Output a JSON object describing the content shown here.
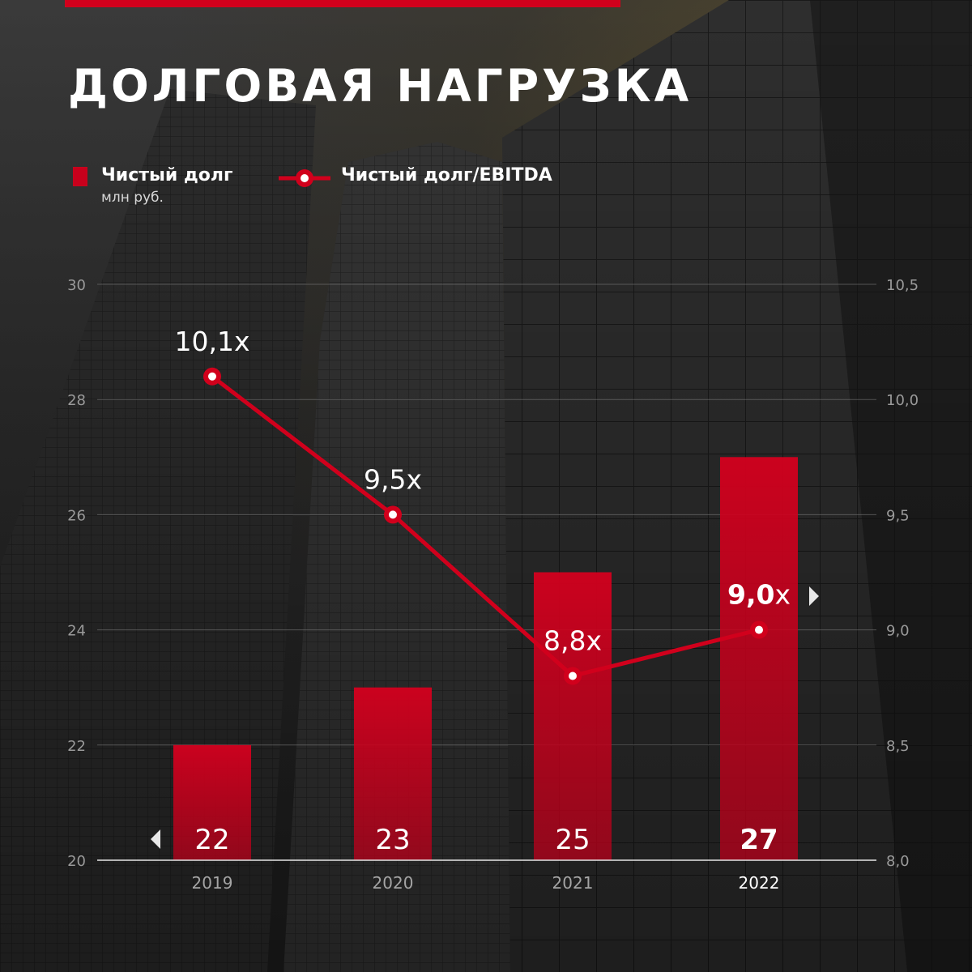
{
  "title": "ДОЛГОВАЯ НАГРУЗКА",
  "legend": {
    "bar_label": "Чистый долг",
    "bar_sublabel": "млн руб.",
    "line_label": "Чистый долг/EBITDA"
  },
  "colors": {
    "accent": "#c8001c",
    "text": "#ffffff",
    "gridline": "#6a6a6a"
  },
  "chart_data": {
    "type": "bar",
    "categories": [
      "2019",
      "2020",
      "2021",
      "2022"
    ],
    "series": [
      {
        "name": "Чистый долг",
        "type": "bar",
        "axis": "left",
        "values": [
          22,
          23,
          25,
          27
        ],
        "labels": [
          "22",
          "23",
          "25",
          "27"
        ]
      },
      {
        "name": "Чистый долг/EBITDA",
        "type": "line",
        "axis": "right",
        "values": [
          10.1,
          9.5,
          8.8,
          9.0
        ],
        "labels": [
          "10,1x",
          "9,5x",
          "8,8x",
          "9,0x"
        ]
      }
    ],
    "y_left": {
      "ylim": [
        20,
        30
      ],
      "ticks": [
        "20",
        "22",
        "24",
        "26",
        "28",
        "30"
      ]
    },
    "y_right": {
      "ylim": [
        8.0,
        10.5
      ],
      "ticks": [
        "8,0",
        "8,5",
        "9,0",
        "9,5",
        "10,0",
        "10,5"
      ]
    },
    "grid": true,
    "legend_position": "top-left",
    "highlight_category": "2022"
  }
}
